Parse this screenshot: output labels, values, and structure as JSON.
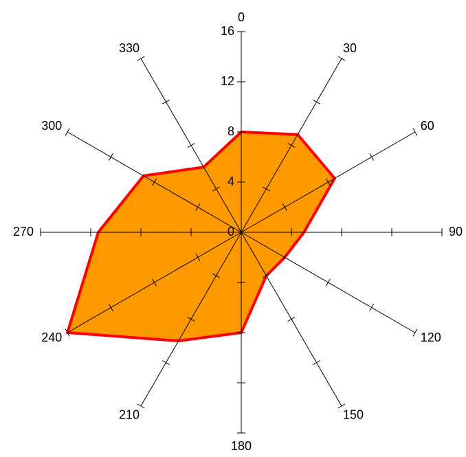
{
  "chart_data": {
    "type": "radar",
    "categories": [
      "0",
      "30",
      "60",
      "90",
      "120",
      "150",
      "180",
      "210",
      "240",
      "270",
      "300",
      "330"
    ],
    "values": [
      8,
      9,
      8.6,
      5,
      4,
      4,
      8,
      10,
      16,
      11.4,
      9,
      6
    ],
    "color": "#ff9900",
    "line_color": "#ff0000",
    "rlim": [
      0,
      16
    ],
    "rticks": [
      0,
      4,
      8,
      12,
      16
    ]
  }
}
